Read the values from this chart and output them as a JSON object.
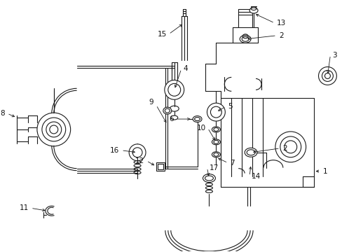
{
  "bg_color": "#ffffff",
  "line_color": "#1a1a1a",
  "figsize": [
    4.89,
    3.6
  ],
  "dpi": 100,
  "label_fs": 7.5
}
